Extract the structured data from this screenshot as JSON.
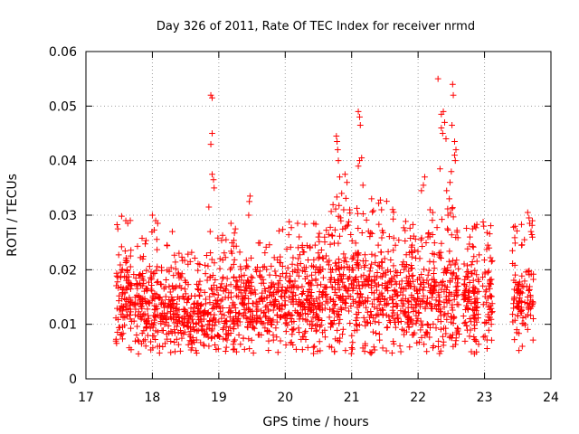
{
  "chart_data": {
    "type": "scatter",
    "title": "Day 326 of 2011, Rate Of TEC Index for receiver nrmd",
    "xlabel": "GPS time / hours",
    "ylabel": "ROTI / TECUs",
    "xlim": [
      17,
      24
    ],
    "ylim": [
      0,
      0.06
    ],
    "xticks": [
      "17",
      "18",
      "19",
      "20",
      "21",
      "22",
      "23",
      "24"
    ],
    "yticks": [
      "0",
      "0.01",
      "0.02",
      "0.03",
      "0.04",
      "0.05",
      "0.06"
    ],
    "grid": true,
    "marker": "plus",
    "color": "#ff0000",
    "density_profile": {
      "x_centers": [
        17.55,
        17.75,
        18.0,
        18.25,
        18.5,
        18.75,
        19.0,
        19.25,
        19.5,
        19.75,
        20.0,
        20.25,
        20.5,
        20.75,
        21.0,
        21.25,
        21.5,
        21.75,
        22.0,
        22.25,
        22.5,
        22.75,
        23.0,
        23.55,
        23.7
      ],
      "median": [
        0.015,
        0.014,
        0.013,
        0.012,
        0.011,
        0.012,
        0.013,
        0.014,
        0.013,
        0.013,
        0.014,
        0.014,
        0.015,
        0.016,
        0.017,
        0.016,
        0.016,
        0.015,
        0.015,
        0.015,
        0.016,
        0.013,
        0.014,
        0.014,
        0.015
      ],
      "spread": [
        0.005,
        0.005,
        0.005,
        0.004,
        0.004,
        0.004,
        0.005,
        0.005,
        0.004,
        0.004,
        0.005,
        0.005,
        0.005,
        0.006,
        0.006,
        0.006,
        0.006,
        0.005,
        0.005,
        0.005,
        0.006,
        0.005,
        0.005,
        0.005,
        0.005
      ]
    },
    "gaps": [
      [
        17.0,
        17.45
      ],
      [
        22.62,
        22.68
      ],
      [
        22.92,
        22.97
      ],
      [
        23.12,
        23.42
      ],
      [
        23.75,
        24.0
      ]
    ],
    "outliers": [
      {
        "x": 17.6,
        "y": 0.029
      },
      {
        "x": 17.63,
        "y": 0.0285
      },
      {
        "x": 17.48,
        "y": 0.0275
      },
      {
        "x": 18.0,
        "y": 0.03
      },
      {
        "x": 18.05,
        "y": 0.029
      },
      {
        "x": 18.08,
        "y": 0.0285
      },
      {
        "x": 18.22,
        "y": 0.0245
      },
      {
        "x": 18.3,
        "y": 0.027
      },
      {
        "x": 18.88,
        "y": 0.052
      },
      {
        "x": 18.9,
        "y": 0.0515
      },
      {
        "x": 18.9,
        "y": 0.045
      },
      {
        "x": 18.88,
        "y": 0.043
      },
      {
        "x": 18.9,
        "y": 0.0375
      },
      {
        "x": 18.92,
        "y": 0.0365
      },
      {
        "x": 18.93,
        "y": 0.035
      },
      {
        "x": 18.85,
        "y": 0.0315
      },
      {
        "x": 18.87,
        "y": 0.027
      },
      {
        "x": 19.25,
        "y": 0.0275
      },
      {
        "x": 19.47,
        "y": 0.0335
      },
      {
        "x": 19.46,
        "y": 0.0325
      },
      {
        "x": 19.45,
        "y": 0.03
      },
      {
        "x": 20.45,
        "y": 0.0245
      },
      {
        "x": 20.5,
        "y": 0.026
      },
      {
        "x": 20.77,
        "y": 0.0445
      },
      {
        "x": 20.78,
        "y": 0.0435
      },
      {
        "x": 20.79,
        "y": 0.042
      },
      {
        "x": 20.8,
        "y": 0.04
      },
      {
        "x": 20.82,
        "y": 0.037
      },
      {
        "x": 20.85,
        "y": 0.034
      },
      {
        "x": 20.9,
        "y": 0.0375
      },
      {
        "x": 20.93,
        "y": 0.036
      },
      {
        "x": 20.88,
        "y": 0.031
      },
      {
        "x": 21.1,
        "y": 0.049
      },
      {
        "x": 21.12,
        "y": 0.048
      },
      {
        "x": 21.13,
        "y": 0.0465
      },
      {
        "x": 21.15,
        "y": 0.0405
      },
      {
        "x": 21.12,
        "y": 0.04
      },
      {
        "x": 21.1,
        "y": 0.039
      },
      {
        "x": 21.17,
        "y": 0.0355
      },
      {
        "x": 21.3,
        "y": 0.033
      },
      {
        "x": 21.45,
        "y": 0.031
      },
      {
        "x": 21.4,
        "y": 0.0245
      },
      {
        "x": 22.05,
        "y": 0.0345
      },
      {
        "x": 22.08,
        "y": 0.0355
      },
      {
        "x": 22.1,
        "y": 0.037
      },
      {
        "x": 22.18,
        "y": 0.031
      },
      {
        "x": 22.22,
        "y": 0.0305
      },
      {
        "x": 22.3,
        "y": 0.055
      },
      {
        "x": 22.35,
        "y": 0.0485
      },
      {
        "x": 22.38,
        "y": 0.049
      },
      {
        "x": 22.4,
        "y": 0.047
      },
      {
        "x": 22.35,
        "y": 0.046
      },
      {
        "x": 22.37,
        "y": 0.045
      },
      {
        "x": 22.42,
        "y": 0.044
      },
      {
        "x": 22.33,
        "y": 0.0385
      },
      {
        "x": 22.43,
        "y": 0.0345
      },
      {
        "x": 22.47,
        "y": 0.033
      },
      {
        "x": 22.45,
        "y": 0.03
      },
      {
        "x": 22.52,
        "y": 0.054
      },
      {
        "x": 22.53,
        "y": 0.052
      },
      {
        "x": 22.51,
        "y": 0.0465
      },
      {
        "x": 22.55,
        "y": 0.0435
      },
      {
        "x": 22.57,
        "y": 0.042
      },
      {
        "x": 22.55,
        "y": 0.041
      },
      {
        "x": 22.56,
        "y": 0.04
      },
      {
        "x": 22.5,
        "y": 0.038
      },
      {
        "x": 22.48,
        "y": 0.036
      },
      {
        "x": 22.82,
        "y": 0.0275
      },
      {
        "x": 22.85,
        "y": 0.028
      },
      {
        "x": 22.78,
        "y": 0.026
      },
      {
        "x": 23.07,
        "y": 0.024
      },
      {
        "x": 23.05,
        "y": 0.0245
      },
      {
        "x": 23.65,
        "y": 0.0305
      },
      {
        "x": 23.67,
        "y": 0.0295
      },
      {
        "x": 23.68,
        "y": 0.0285
      },
      {
        "x": 23.7,
        "y": 0.027
      },
      {
        "x": 23.42,
        "y": 0.0235
      }
    ]
  }
}
